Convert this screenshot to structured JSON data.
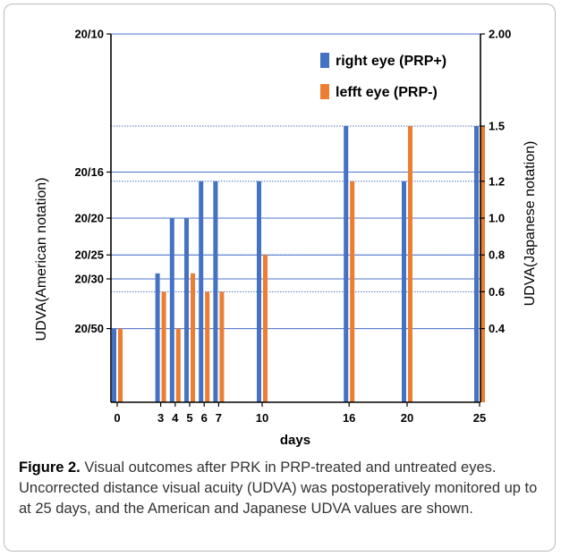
{
  "chart_data": {
    "type": "bar",
    "x": [
      0,
      3,
      4,
      5,
      6,
      7,
      10,
      16,
      20,
      25
    ],
    "xlabel": "days",
    "ylabel_left": "UDVA(American notation)",
    "ylabel_right": "UDVA(Japanese notation)",
    "ylim": [
      0,
      2.0
    ],
    "left_ticks": [
      {
        "label": "20/10",
        "value": 2.0
      },
      {
        "label": "20/16",
        "value": 1.25
      },
      {
        "label": "20/20",
        "value": 1.0
      },
      {
        "label": "20/25",
        "value": 0.8
      },
      {
        "label": "20/30",
        "value": 0.67
      },
      {
        "label": "20/50",
        "value": 0.4
      }
    ],
    "right_ticks": [
      {
        "label": "2.00",
        "value": 2.0
      },
      {
        "label": "1.5",
        "value": 1.5
      },
      {
        "label": "1.2",
        "value": 1.2
      },
      {
        "label": "1.0",
        "value": 1.0
      },
      {
        "label": "0.8",
        "value": 0.8
      },
      {
        "label": "0.6",
        "value": 0.6
      },
      {
        "label": "0.4",
        "value": 0.4
      }
    ],
    "series": [
      {
        "name": "right eye (PRP+)",
        "color": "#4472C4",
        "values": [
          0.4,
          0.7,
          1.0,
          1.0,
          1.2,
          1.2,
          1.2,
          1.5,
          1.2,
          1.5
        ]
      },
      {
        "name": "lefft  eye (PRP-)",
        "color": "#ED7D31",
        "values": [
          0.4,
          0.6,
          0.4,
          0.7,
          0.6,
          0.6,
          0.8,
          1.2,
          1.5,
          1.5
        ]
      }
    ],
    "grid": true,
    "legend_position": "top-right"
  },
  "caption": {
    "label": "Figure 2.",
    "text": "Visual outcomes after PRK in PRP-treated and untreated eyes. Uncorrected distance visual acuity (UDVA) was postoperatively monitored up to at 25 days, and the American and Japanese UDVA values are shown."
  }
}
